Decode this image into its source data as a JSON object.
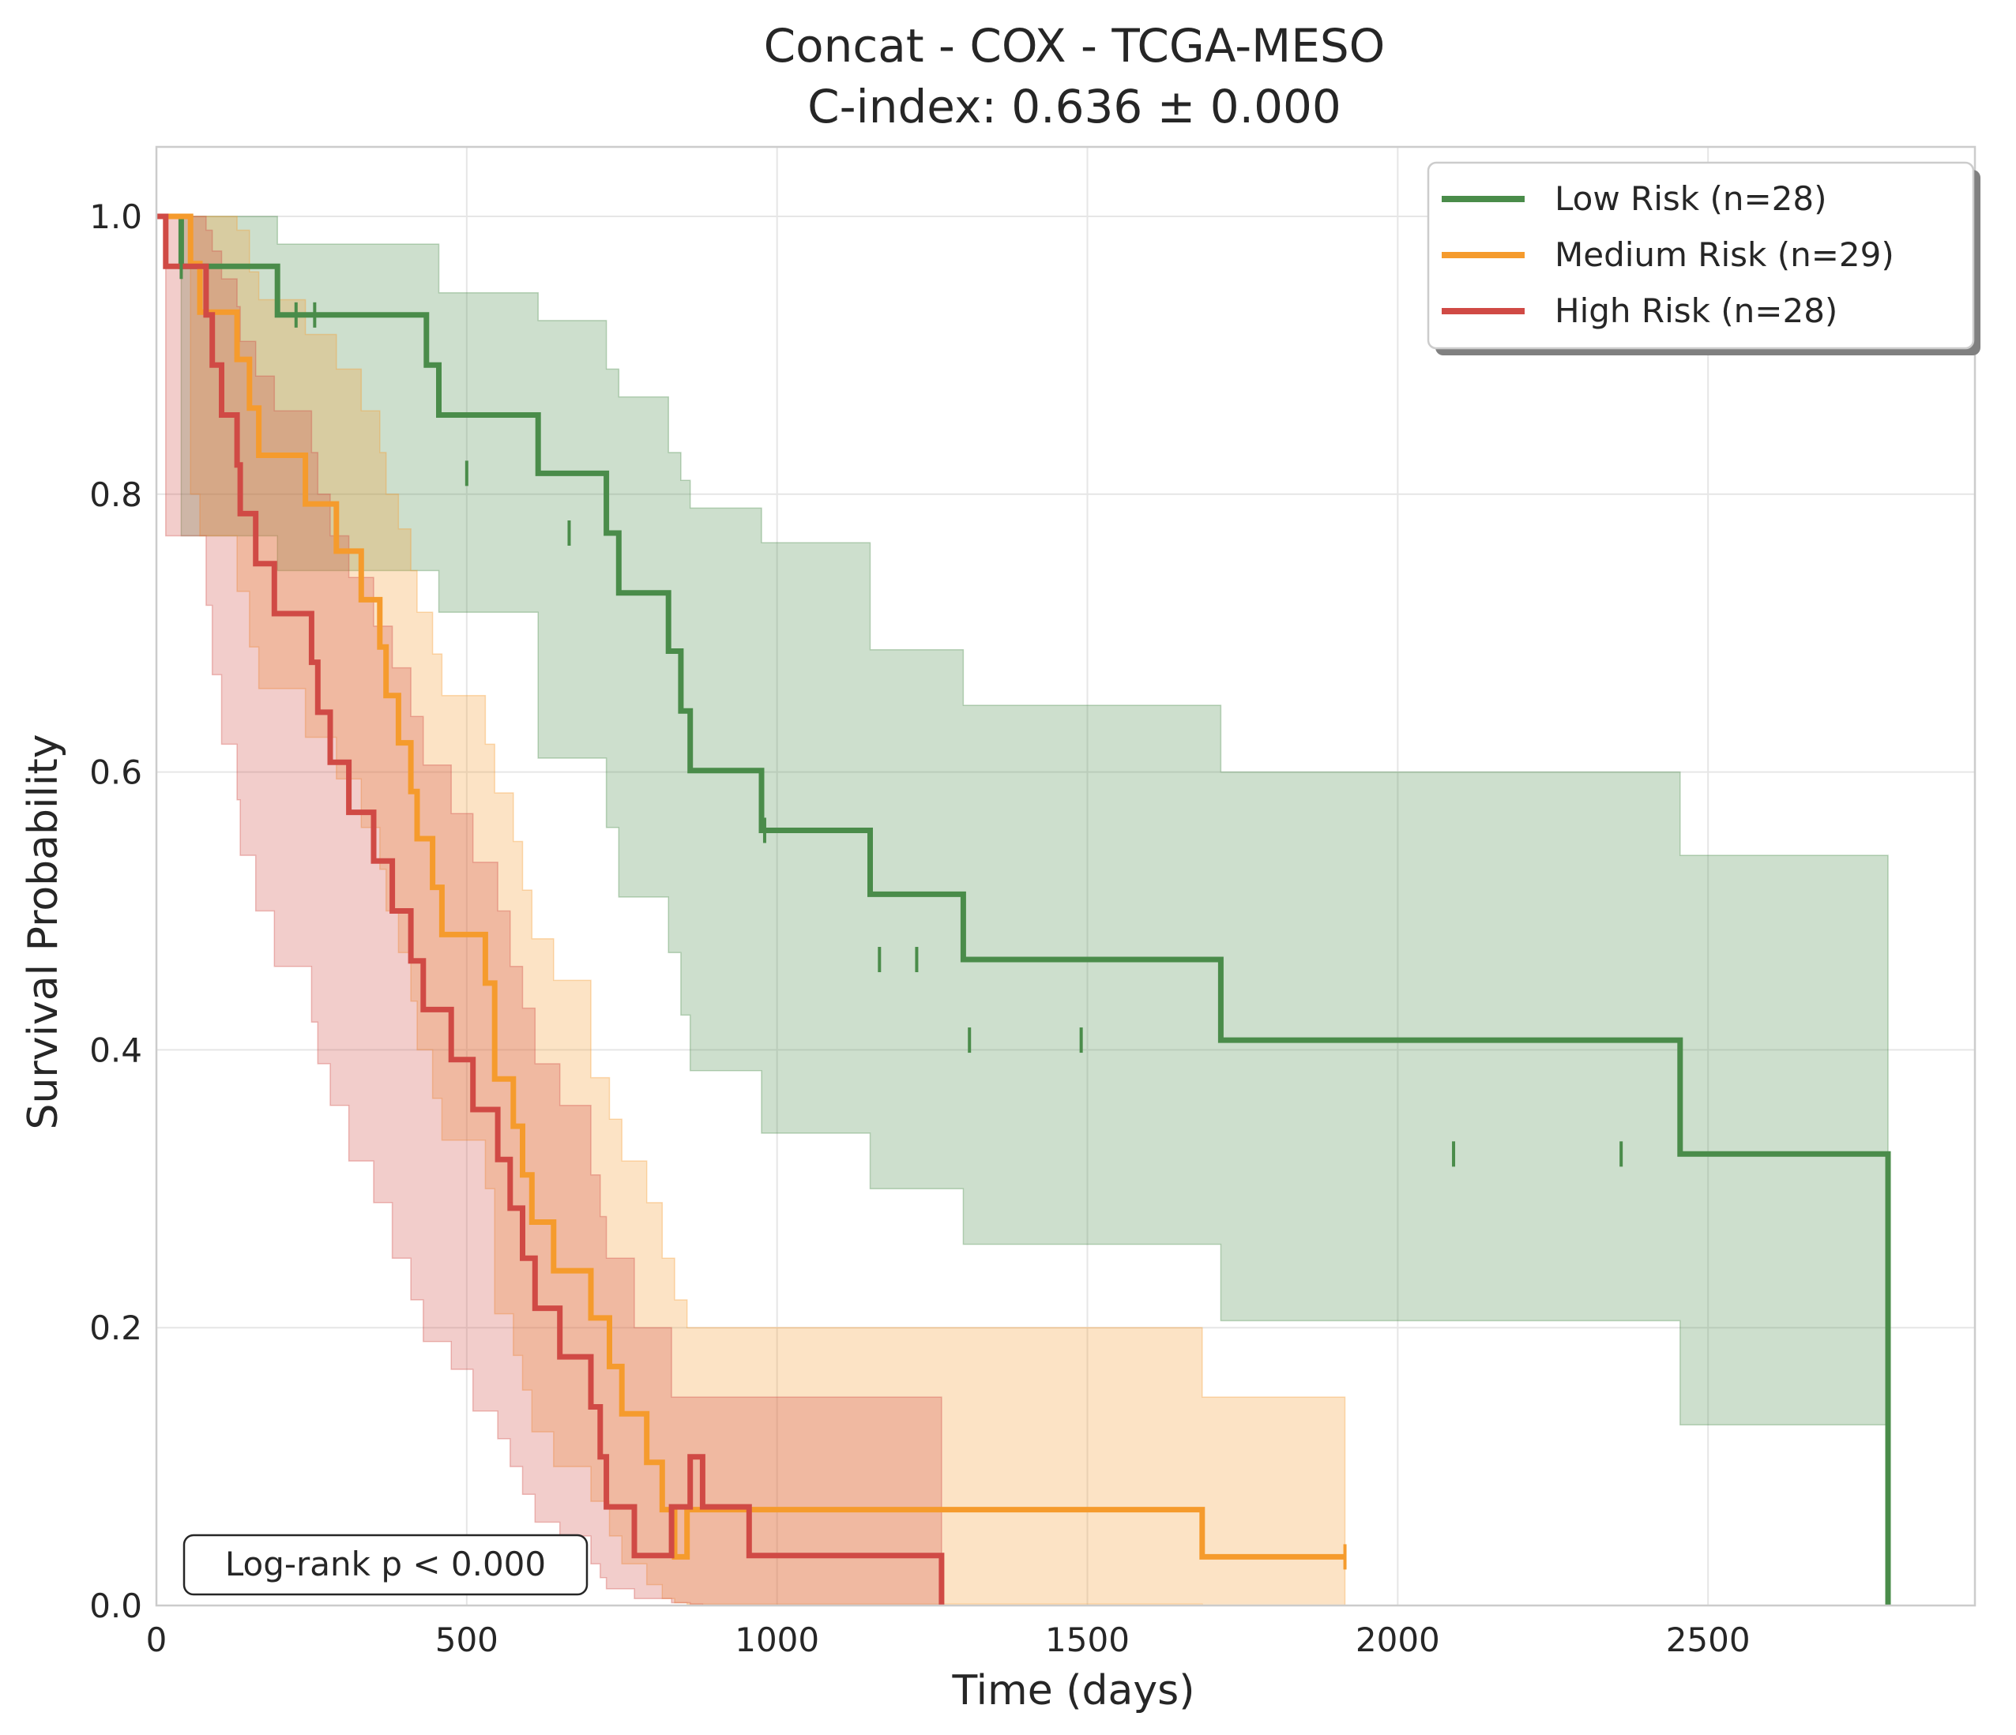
{
  "chart_data": {
    "type": "line",
    "title": "Concat - COX - TCGA-MESO",
    "subtitle": "C-index: 0.636 ± 0.000",
    "xlabel": "Time (days)",
    "ylabel": "Survival Probability",
    "xlim": [
      0,
      2930
    ],
    "ylim": [
      0,
      1.05
    ],
    "xticks": [
      0,
      500,
      1000,
      1500,
      2000,
      2500
    ],
    "xtick_labels": [
      "0",
      "500",
      "1000",
      "1500",
      "2000",
      "2500"
    ],
    "yticks": [
      0.0,
      0.2,
      0.4,
      0.6,
      0.8,
      1.0
    ],
    "ytick_labels": [
      "0.0",
      "0.2",
      "0.4",
      "0.6",
      "0.8",
      "1.0"
    ],
    "grid": true,
    "legend_position": "top-right",
    "annotation": "Log-rank p < 0.000",
    "series": [
      {
        "name": "Low Risk (n=28)",
        "color": "#4a8c4a",
        "x": [
          0,
          40,
          195,
          435,
          455,
          615,
          725,
          745,
          825,
          845,
          860,
          975,
          1150,
          1300,
          1715,
          2455,
          2790
        ],
        "y": [
          1.0,
          0.964,
          0.929,
          0.893,
          0.857,
          0.815,
          0.772,
          0.729,
          0.687,
          0.644,
          0.601,
          0.558,
          0.512,
          0.465,
          0.407,
          0.325,
          0.163
        ],
        "x_end": 2790,
        "y_end": 0.0,
        "ci_upper": [
          1.0,
          1.0,
          0.98,
          0.98,
          0.945,
          0.925,
          0.89,
          0.87,
          0.83,
          0.81,
          0.79,
          0.765,
          0.688,
          0.648,
          0.6,
          0.54,
          0.46
        ],
        "ci_lower": [
          1.0,
          0.77,
          0.745,
          0.745,
          0.715,
          0.61,
          0.56,
          0.51,
          0.47,
          0.425,
          0.385,
          0.34,
          0.3,
          0.26,
          0.205,
          0.13,
          0.015
        ],
        "censor_x": [
          40,
          225,
          255,
          500,
          665,
          980,
          1165,
          1225,
          1310,
          1490,
          2090,
          2360
        ],
        "censor_y": [
          0.964,
          0.929,
          0.929,
          0.815,
          0.772,
          0.558,
          0.465,
          0.465,
          0.407,
          0.407,
          0.325,
          0.325
        ]
      },
      {
        "name": "Medium Risk (n=29)",
        "color": "#f59b2d",
        "x": [
          0,
          55,
          70,
          130,
          150,
          165,
          240,
          290,
          330,
          360,
          370,
          390,
          410,
          420,
          445,
          460,
          530,
          545,
          575,
          590,
          605,
          640,
          700,
          730,
          750,
          790,
          815,
          835,
          855,
          1685
        ],
        "y": [
          1.0,
          0.966,
          0.931,
          0.897,
          0.862,
          0.828,
          0.793,
          0.759,
          0.724,
          0.69,
          0.655,
          0.621,
          0.586,
          0.552,
          0.517,
          0.483,
          0.448,
          0.379,
          0.345,
          0.31,
          0.276,
          0.241,
          0.207,
          0.172,
          0.138,
          0.103,
          0.069,
          0.035,
          0.069,
          0.035
        ],
        "x_end": 1915,
        "y_end": 0.035,
        "ci_upper": [
          1.0,
          1.0,
          1.0,
          0.99,
          0.96,
          0.94,
          0.915,
          0.89,
          0.86,
          0.83,
          0.8,
          0.775,
          0.745,
          0.715,
          0.685,
          0.655,
          0.62,
          0.585,
          0.55,
          0.515,
          0.48,
          0.45,
          0.38,
          0.35,
          0.32,
          0.29,
          0.25,
          0.22,
          0.2,
          0.15
        ],
        "ci_lower": [
          1.0,
          0.8,
          0.77,
          0.73,
          0.69,
          0.66,
          0.625,
          0.595,
          0.56,
          0.53,
          0.5,
          0.47,
          0.435,
          0.4,
          0.365,
          0.335,
          0.3,
          0.21,
          0.18,
          0.155,
          0.125,
          0.1,
          0.075,
          0.05,
          0.03,
          0.015,
          0.005,
          0.002,
          0.001,
          0.0
        ],
        "censor_x": [
          1915
        ],
        "censor_y": [
          0.035
        ]
      },
      {
        "name": "High Risk (n=28)",
        "color": "#d04a45",
        "x": [
          0,
          15,
          80,
          90,
          105,
          130,
          135,
          160,
          190,
          250,
          260,
          280,
          310,
          350,
          380,
          410,
          430,
          475,
          510,
          550,
          570,
          590,
          610,
          650,
          700,
          715,
          725,
          770,
          830,
          860,
          880,
          955
        ],
        "y": [
          1.0,
          0.964,
          0.929,
          0.893,
          0.857,
          0.821,
          0.786,
          0.75,
          0.714,
          0.679,
          0.643,
          0.607,
          0.571,
          0.536,
          0.5,
          0.464,
          0.429,
          0.393,
          0.357,
          0.321,
          0.286,
          0.25,
          0.214,
          0.179,
          0.143,
          0.107,
          0.071,
          0.036,
          0.071,
          0.107,
          0.071,
          0.036
        ],
        "x_end": 1265,
        "y_end": 0.0,
        "ci_upper": [
          1.0,
          1.0,
          0.99,
          0.975,
          0.955,
          0.935,
          0.91,
          0.885,
          0.86,
          0.83,
          0.8,
          0.77,
          0.74,
          0.705,
          0.675,
          0.64,
          0.605,
          0.57,
          0.535,
          0.5,
          0.46,
          0.43,
          0.39,
          0.36,
          0.31,
          0.28,
          0.25,
          0.2,
          0.15,
          0.15,
          0.15,
          0.15
        ],
        "ci_lower": [
          1.0,
          0.77,
          0.72,
          0.67,
          0.62,
          0.58,
          0.54,
          0.5,
          0.46,
          0.42,
          0.39,
          0.36,
          0.32,
          0.29,
          0.25,
          0.22,
          0.19,
          0.17,
          0.14,
          0.12,
          0.1,
          0.08,
          0.06,
          0.05,
          0.03,
          0.02,
          0.012,
          0.005,
          0.002,
          0.001,
          0.0,
          0.0
        ],
        "censor_x": [],
        "censor_y": []
      }
    ]
  }
}
